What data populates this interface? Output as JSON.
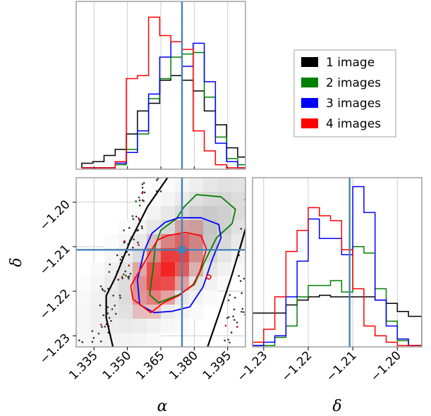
{
  "chart_data": [
    {
      "type": "histogram",
      "panel": "alpha-marginal",
      "x_range": [
        1.327,
        1.403
      ],
      "truth": 1.3745,
      "bins": [
        1.3295,
        1.3345,
        1.3395,
        1.3445,
        1.3495,
        1.3545,
        1.3595,
        1.3645,
        1.3695,
        1.3745,
        1.3795,
        1.3845,
        1.3895,
        1.3945,
        1.3995,
        1.4045
      ],
      "series": [
        {
          "name": "1 image",
          "color": "#000000",
          "counts": [
            0.03,
            0.04,
            0.08,
            0.12,
            0.22,
            0.37,
            0.42,
            0.57,
            0.6,
            0.57,
            0.5,
            0.37,
            0.28,
            0.13,
            0.07
          ]
        },
        {
          "name": "2 images",
          "color": "#008000",
          "counts": [
            0,
            0,
            0,
            0.02,
            0.12,
            0.22,
            0.45,
            0.58,
            0.72,
            0.74,
            0.75,
            0.46,
            0.2,
            0.06,
            0.02
          ]
        },
        {
          "name": "3 images",
          "color": "#0000ff",
          "counts": [
            0,
            0,
            0,
            0.03,
            0.1,
            0.24,
            0.48,
            0.72,
            0.82,
            0.66,
            0.81,
            0.56,
            0.16,
            0.04,
            0
          ]
        },
        {
          "name": "4 images",
          "color": "#ff0000",
          "counts": [
            0,
            0,
            0,
            0.04,
            0.58,
            0.6,
            0.98,
            0.86,
            0.82,
            0.77,
            0.24,
            0.11,
            0.02,
            0,
            0
          ]
        }
      ]
    },
    {
      "type": "histogram2d",
      "panel": "alpha-delta-joint",
      "x_range": [
        1.327,
        1.403
      ],
      "y_range": [
        -1.2325,
        -1.1945
      ],
      "xticks": [
        "1.335",
        "1.350",
        "1.365",
        "1.380",
        "1.395"
      ],
      "xtick_values": [
        1.335,
        1.35,
        1.365,
        1.38,
        1.395
      ],
      "yticks": [
        "−1.23",
        "−1.22",
        "−1.21",
        "−1.20"
      ],
      "ytick_values": [
        -1.23,
        -1.22,
        -1.21,
        -1.2
      ],
      "xlabel": "α",
      "ylabel": "δ",
      "truth": [
        1.3745,
        -1.2107
      ],
      "contours": [
        {
          "name": "1 image",
          "color": "#000000",
          "left_edge": [
            [
              1.3435,
              -1.2325
            ],
            [
              1.3405,
              -1.226
            ],
            [
              1.3405,
              -1.221
            ],
            [
              1.3445,
              -1.217
            ],
            [
              1.351,
              -1.209
            ],
            [
              1.359,
              -1.201
            ],
            [
              1.368,
              -1.1945
            ]
          ],
          "right_edge": [
            [
              1.386,
              -1.2325
            ],
            [
              1.3915,
              -1.2245
            ],
            [
              1.3965,
              -1.217
            ],
            [
              1.401,
              -1.2095
            ],
            [
              1.403,
              -1.206
            ]
          ]
        },
        {
          "name": "2 images",
          "color": "#008000",
          "points": [
            [
              1.381,
              -1.1983
            ],
            [
              1.392,
              -1.1988
            ],
            [
              1.3985,
              -1.2016
            ],
            [
              1.397,
              -1.2048
            ],
            [
              1.39,
              -1.208
            ],
            [
              1.385,
              -1.213
            ],
            [
              1.38,
              -1.2185
            ],
            [
              1.373,
              -1.2208
            ],
            [
              1.364,
              -1.2226
            ],
            [
              1.36,
              -1.2208
            ],
            [
              1.3615,
              -1.215
            ],
            [
              1.3625,
              -1.2098
            ],
            [
              1.365,
              -1.2063
            ],
            [
              1.372,
              -1.2037
            ],
            [
              1.3755,
              -1.201
            ],
            [
              1.381,
              -1.1983
            ]
          ]
        },
        {
          "name": "3 images",
          "color": "#0000ff",
          "points": [
            [
              1.367,
              -1.2045
            ],
            [
              1.373,
              -1.2035
            ],
            [
              1.383,
              -1.2035
            ],
            [
              1.391,
              -1.205
            ],
            [
              1.392,
              -1.208
            ],
            [
              1.388,
              -1.213
            ],
            [
              1.384,
              -1.219
            ],
            [
              1.378,
              -1.2235
            ],
            [
              1.37,
              -1.2245
            ],
            [
              1.362,
              -1.2248
            ],
            [
              1.3555,
              -1.223
            ],
            [
              1.3545,
              -1.2175
            ],
            [
              1.3575,
              -1.211
            ],
            [
              1.361,
              -1.207
            ],
            [
              1.367,
              -1.2045
            ]
          ]
        },
        {
          "name": "4 images",
          "color": "#ff0000",
          "points": [
            [
              1.368,
              -1.2075
            ],
            [
              1.376,
              -1.2068
            ],
            [
              1.383,
              -1.2075
            ],
            [
              1.3855,
              -1.2105
            ],
            [
              1.3825,
              -1.2155
            ],
            [
              1.3795,
              -1.2185
            ],
            [
              1.373,
              -1.221
            ],
            [
              1.3665,
              -1.2225
            ],
            [
              1.3605,
              -1.2248
            ],
            [
              1.3525,
              -1.2218
            ],
            [
              1.3515,
              -1.2188
            ],
            [
              1.3565,
              -1.2145
            ],
            [
              1.3605,
              -1.211
            ],
            [
              1.3635,
              -1.2085
            ],
            [
              1.368,
              -1.2075
            ]
          ]
        }
      ]
    },
    {
      "type": "histogram",
      "panel": "delta-marginal",
      "x_range": [
        -1.2325,
        -1.1945
      ],
      "xticks": [
        "−1.23",
        "−1.22",
        "−1.21",
        "−1.20"
      ],
      "xtick_values": [
        -1.23,
        -1.22,
        -1.21,
        -1.2
      ],
      "xlabel": "δ",
      "truth": -1.2107,
      "bins": [
        -1.2325,
        -1.23,
        -1.2275,
        -1.225,
        -1.2225,
        -1.22,
        -1.2175,
        -1.215,
        -1.2125,
        -1.21,
        -1.2075,
        -1.205,
        -1.2025,
        -1.2,
        -1.1975,
        -1.1945
      ],
      "series": [
        {
          "name": "1 image",
          "color": "#000000",
          "counts": [
            0.2,
            0.2,
            0.2,
            0.25,
            0.28,
            0.3,
            0.31,
            0.3,
            0.3,
            0.3,
            0.3,
            0.28,
            0.26,
            0.21,
            0.18
          ]
        },
        {
          "name": "2 images",
          "color": "#008000",
          "counts": [
            0,
            0,
            0.05,
            0.12,
            0.3,
            0.37,
            0.37,
            0.4,
            0.33,
            0.61,
            0.57,
            0.35,
            0.15,
            0.03,
            0
          ]
        },
        {
          "name": "3 images",
          "color": "#0000ff",
          "counts": [
            0,
            0.02,
            0.06,
            0.3,
            0.52,
            0.78,
            0.66,
            0.66,
            0.56,
            0.98,
            0.82,
            0.28,
            0.12,
            0.04,
            0
          ]
        },
        {
          "name": "4 images",
          "color": "#ff0000",
          "counts": [
            0.02,
            0.1,
            0.3,
            0.58,
            0.71,
            0.85,
            0.8,
            0.77,
            0.59,
            0.35,
            0.12,
            0.06,
            0.02,
            0,
            0
          ]
        }
      ]
    }
  ],
  "legend": {
    "placement": "right-of-top-histogram",
    "entries": [
      {
        "label": "1 image",
        "color": "#000000"
      },
      {
        "label": "2 images",
        "color": "#008000"
      },
      {
        "label": "3 images",
        "color": "#0000ff"
      },
      {
        "label": "4 images",
        "color": "#ff0000"
      }
    ]
  }
}
